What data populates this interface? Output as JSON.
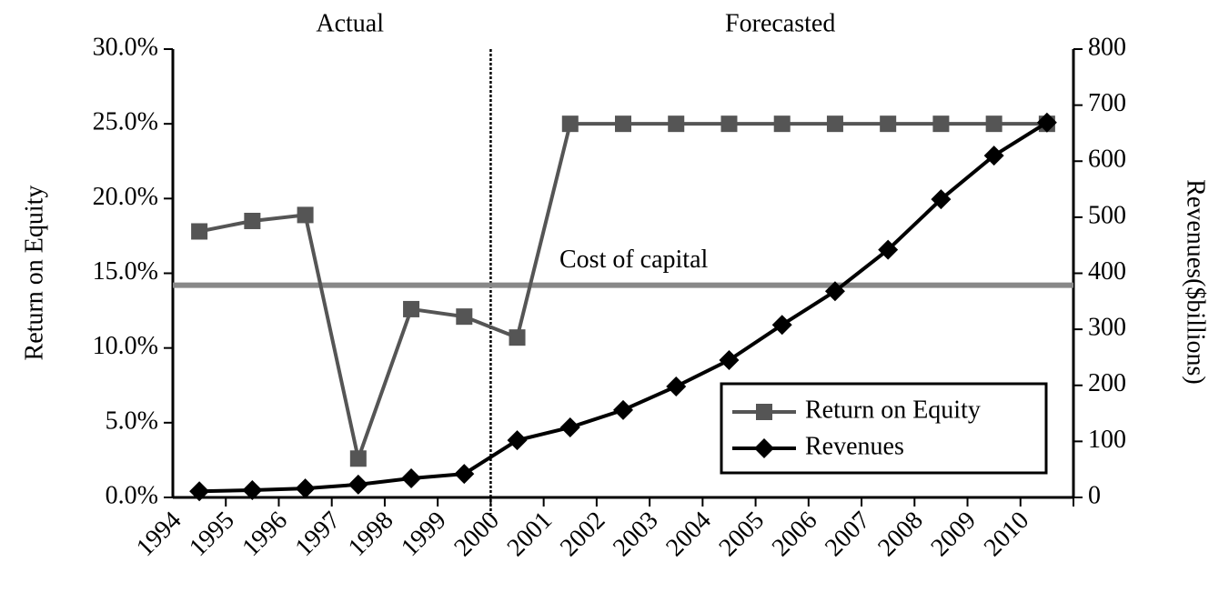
{
  "chart_data": {
    "type": "line",
    "y_label": "Return on Equity",
    "y2_label": "Revenues($billions)",
    "categories": [
      "1994",
      "1995",
      "1996",
      "1997",
      "1998",
      "1999",
      "2000",
      "2001",
      "2002",
      "2003",
      "2004",
      "2005",
      "2006",
      "2007",
      "2008",
      "2009",
      "2010"
    ],
    "series": [
      {
        "name": "Return on Equity",
        "color": "#555555",
        "marker": "square",
        "axis": "y",
        "values": [
          17.8,
          18.5,
          18.9,
          2.6,
          12.6,
          12.1,
          10.7,
          25.0,
          25.0,
          25.0,
          25.0,
          25.0,
          25.0,
          25.0,
          25.0,
          25.0,
          25.0
        ]
      },
      {
        "name": "Revenues",
        "color": "#000000",
        "marker": "diamond",
        "axis": "y2",
        "values": [
          11,
          13,
          16,
          23,
          34,
          42,
          102,
          125,
          156,
          198,
          245,
          308,
          368,
          442,
          532,
          610,
          669
        ]
      }
    ],
    "ylim": [
      0,
      30
    ],
    "yticks": [
      {
        "value": 0,
        "label": "0.0%"
      },
      {
        "value": 5,
        "label": "5.0%"
      },
      {
        "value": 10,
        "label": "10.0%"
      },
      {
        "value": 15,
        "label": "15.0%"
      },
      {
        "value": 20,
        "label": "20.0%"
      },
      {
        "value": 25,
        "label": "25.0%"
      },
      {
        "value": 30,
        "label": "30.0%"
      }
    ],
    "y2lim": [
      0,
      800
    ],
    "y2ticks": [
      0,
      100,
      200,
      300,
      400,
      500,
      600,
      700,
      800
    ],
    "reference_line": {
      "label": "Cost of capital",
      "value": 14.2,
      "color": "#888888"
    },
    "regions": [
      {
        "label": "Actual"
      },
      {
        "label": "Forecasted"
      }
    ],
    "divider_category": "2000",
    "legend": "bottom-right"
  }
}
